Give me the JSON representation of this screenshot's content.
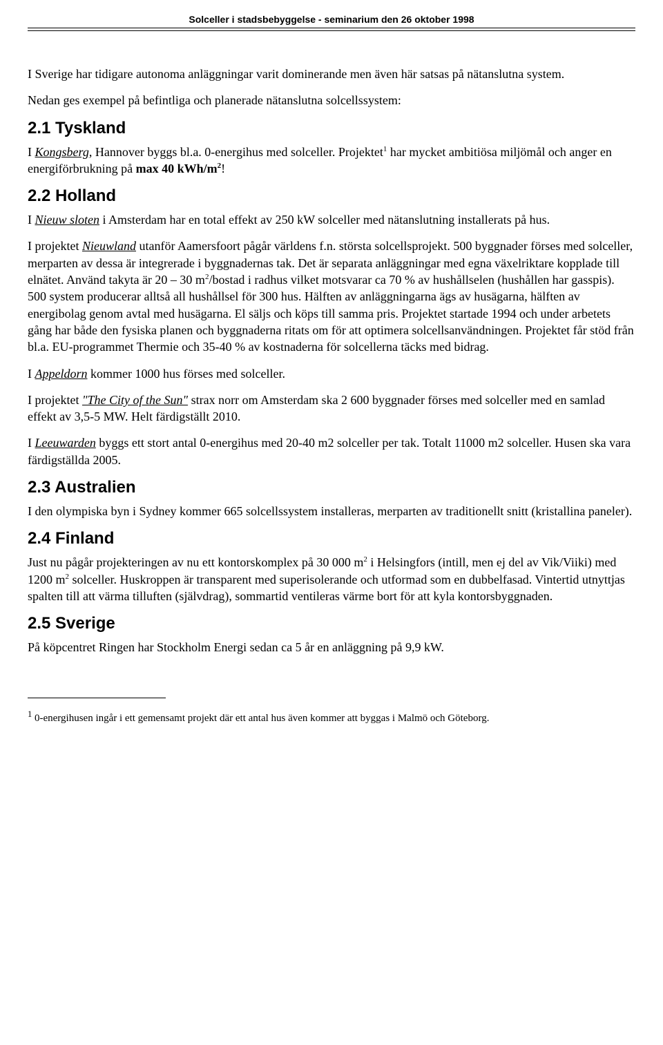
{
  "header": "Solceller i stadsbebyggelse - seminarium den 26 oktober 1998",
  "intro1": "I Sverige har tidigare autonoma anläggningar varit dominerande men även här satsas på nätanslutna system.",
  "intro2": "Nedan ges exempel på befintliga och planerade nätanslutna solcellssystem:",
  "s21_title": "2.1 Tyskland",
  "s21_p1a": "I ",
  "s21_p1b": "Kongsberg",
  "s21_p1c": ", Hannover byggs bl.a. 0-energihus med solceller. Projektet",
  "s21_p1d": " har mycket ambitiösa miljömål och anger en energiförbrukning på ",
  "s21_p1e": "max 40 kWh/m",
  "s21_p1f": "!",
  "s22_title": "2.2 Holland",
  "s22_p1a": "I ",
  "s22_p1b": "Nieuw sloten",
  "s22_p1c": " i Amsterdam har en total effekt av 250 kW solceller med nätanslutning installerats på hus.",
  "s22_p2a": "I projektet ",
  "s22_p2b": "Nieuwland",
  "s22_p2c": " utanför Aamersfoort pågår världens f.n. största solcellsprojekt. 500 byggnader förses med solceller, merparten av dessa är integrerade i byggnadernas tak. Det är separata anläggningar med egna växelriktare kopplade till elnätet. Använd takyta är 20 – 30 m",
  "s22_p2d": "/bostad i radhus vilket motsvarar ca 70 % av hushållselen (hushållen har gasspis). 500 system producerar alltså all hushållsel för 300 hus. Hälften av anläggningarna ägs av husägarna, hälften av energibolag genom avtal med husägarna. El säljs och köps till samma pris. Projektet startade 1994 och under arbetets gång har både den fysiska planen och byggnaderna ritats om för att optimera solcellsanvändningen. Projektet får stöd från bl.a. EU-programmet Thermie och 35-40 % av kostnaderna för solcellerna täcks med bidrag.",
  "s22_p3a": "I ",
  "s22_p3b": "Appeldorn",
  "s22_p3c": " kommer 1000 hus förses med solceller.",
  "s22_p4a": "I projektet ",
  "s22_p4b": "\"The City of the Sun\"",
  "s22_p4c": " strax norr om Amsterdam ska 2 600 byggnader förses med solceller med en samlad effekt av 3,5-5 MW. Helt färdigställt 2010.",
  "s22_p5a": "I ",
  "s22_p5b": "Leeuwarden",
  "s22_p5c": " byggs ett stort antal 0-energihus med 20-40 m2 solceller per tak. Totalt 11000 m2 solceller. Husen ska vara färdigställda 2005.",
  "s23_title": "2.3 Australien",
  "s23_p1": "I den olympiska byn i Sydney kommer 665 solcellssystem installeras, merparten av traditionellt snitt (kristallina paneler).",
  "s24_title": "2.4 Finland",
  "s24_p1a": "Just nu pågår projekteringen av nu ett kontorskomplex på 30 000 m",
  "s24_p1b": " i Helsingfors (intill, men ej del av Vik/Viiki) med 1200 m",
  "s24_p1c": " solceller. Huskroppen är transparent med superisolerande och utformad som en dubbelfasad. Vintertid utnyttjas spalten till att värma tilluften (självdrag), sommartid ventileras värme bort för att kyla kontorsbyggnaden.",
  "s25_title": "2.5 Sverige",
  "s25_p1": "På köpcentret Ringen har Stockholm Energi sedan ca 5 år en anläggning på 9,9 kW.",
  "footnote_num": "1",
  "footnote_text": " 0-energihusen ingår i ett gemensamt projekt där ett antal hus även kommer att byggas i Malmö och Göteborg.",
  "sup1": "1",
  "sup2": "2"
}
